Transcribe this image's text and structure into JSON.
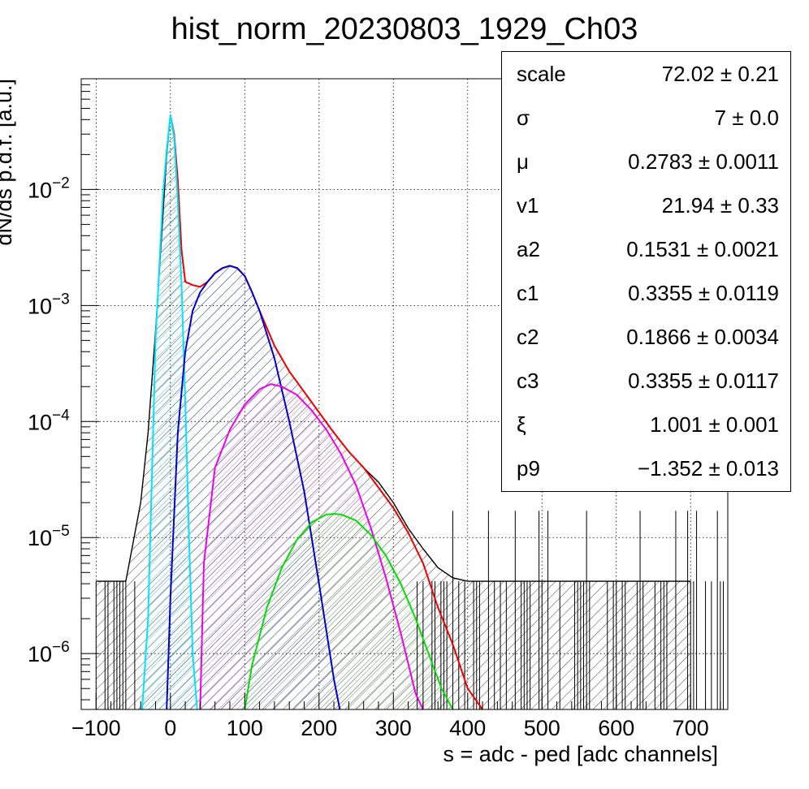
{
  "chart_data": {
    "type": "line",
    "title": "hist_norm_20230803_1929_Ch03",
    "xlabel": "s = adc - ped [adc channels]",
    "ylabel": "dN/ds p.d.f. [a.u.]",
    "xlim": [
      -120,
      750
    ],
    "ylim": [
      3.3e-07,
      0.09
    ],
    "yscale": "log",
    "grid": true,
    "x_ticks": [
      "-100",
      "0",
      "100",
      "200",
      "300",
      "400",
      "500",
      "600",
      "700"
    ],
    "y_ticks": [
      {
        "base": "10",
        "exp": "-2",
        "value": 0.01
      },
      {
        "base": "10",
        "exp": "-3",
        "value": 0.001
      },
      {
        "base": "10",
        "exp": "-4",
        "value": 0.0001
      },
      {
        "base": "10",
        "exp": "-5",
        "value": 1e-05
      },
      {
        "base": "10",
        "exp": "-6",
        "value": 1e-06
      }
    ],
    "series": [
      {
        "color": "#000000",
        "kind": "histogram",
        "x": [
          -100,
          -80,
          -60,
          -40,
          -30,
          -20,
          -10,
          -5,
          0,
          5,
          10,
          15,
          20,
          30,
          40,
          50,
          60,
          70,
          80,
          90,
          100,
          110,
          120,
          140,
          160,
          180,
          200,
          220,
          240,
          260,
          280,
          300,
          320,
          340,
          360,
          380,
          400,
          450,
          500,
          600,
          700
        ],
        "y": [
          4.2e-06,
          4.2e-06,
          4.2e-06,
          2e-05,
          8e-05,
          0.0006,
          0.006,
          0.02,
          0.044,
          0.03,
          0.012,
          0.003,
          0.0016,
          0.0015,
          0.00145,
          0.0016,
          0.0019,
          0.0021,
          0.0022,
          0.0021,
          0.0018,
          0.0013,
          0.0009,
          0.00045,
          0.00027,
          0.00018,
          0.00012,
          8e-05,
          5.5e-05,
          4e-05,
          3e-05,
          2e-05,
          1.2e-05,
          8e-06,
          5.5e-06,
          4.5e-06,
          4.2e-06,
          4.2e-06,
          4.2e-06,
          4.2e-06,
          4.2e-06
        ]
      },
      {
        "color": "#ee0000",
        "kind": "total-fit",
        "x": [
          0,
          5,
          10,
          15,
          20,
          30,
          40,
          50,
          60,
          70,
          80,
          90,
          100,
          110,
          120,
          140,
          160,
          180,
          200,
          220,
          240,
          260,
          280,
          300,
          320,
          340,
          360,
          380,
          400,
          420
        ],
        "y": [
          0.044,
          0.03,
          0.012,
          0.003,
          0.0016,
          0.0015,
          0.00145,
          0.0016,
          0.0019,
          0.0021,
          0.0022,
          0.0021,
          0.0018,
          0.0013,
          0.0009,
          0.00045,
          0.00027,
          0.00018,
          0.00012,
          8e-05,
          5.5e-05,
          4e-05,
          2.7e-05,
          1.8e-05,
          1.1e-05,
          6e-06,
          2.5e-06,
          1.2e-06,
          5e-07,
          3e-07
        ]
      },
      {
        "color": "#00e5ff",
        "kind": "component",
        "x": [
          -38,
          -30,
          -20,
          -10,
          -5,
          0,
          5,
          10,
          15,
          20,
          25,
          30,
          36
        ],
        "y": [
          3e-07,
          2e-06,
          0.0005,
          0.009,
          0.022,
          0.044,
          0.028,
          0.008,
          0.0015,
          0.00015,
          1e-05,
          1e-06,
          3e-07
        ]
      },
      {
        "color": "#0000cc",
        "kind": "component",
        "x": [
          -5,
          0,
          10,
          20,
          30,
          40,
          50,
          60,
          70,
          80,
          90,
          100,
          110,
          120,
          140,
          160,
          180,
          200,
          220,
          228
        ],
        "y": [
          3e-07,
          3e-06,
          8e-05,
          0.0004,
          0.0009,
          0.0013,
          0.0016,
          0.0019,
          0.0021,
          0.0022,
          0.0021,
          0.0018,
          0.0013,
          0.0009,
          0.00035,
          0.0001,
          2.5e-05,
          4e-06,
          6e-07,
          3e-07
        ]
      },
      {
        "color": "#ee00ee",
        "kind": "component",
        "x": [
          40,
          45,
          60,
          80,
          100,
          120,
          135,
          150,
          170,
          190,
          210,
          230,
          250,
          270,
          290,
          310,
          330,
          340
        ],
        "y": [
          3e-07,
          6e-06,
          4e-05,
          8.5e-05,
          0.00014,
          0.00019,
          0.00021,
          0.0002,
          0.00017,
          0.000125,
          8.5e-05,
          5.2e-05,
          2.8e-05,
          1.2e-05,
          4.5e-06,
          1.5e-06,
          4.5e-07,
          3e-07
        ]
      },
      {
        "color": "#00e000",
        "kind": "component",
        "x": [
          100,
          110,
          130,
          150,
          170,
          190,
          210,
          220,
          230,
          250,
          270,
          290,
          310,
          330,
          350,
          365,
          380
        ],
        "y": [
          3e-07,
          8e-07,
          2.5e-06,
          5.5e-06,
          9.5e-06,
          1.35e-05,
          1.58e-05,
          1.6e-05,
          1.58e-05,
          1.4e-05,
          1.05e-05,
          7e-06,
          4e-06,
          2e-06,
          9e-07,
          5e-07,
          3e-07
        ]
      }
    ]
  },
  "stats_box": {
    "rows": [
      {
        "name": "scale",
        "value": "72.02 ± 0.21"
      },
      {
        "name": "σ",
        "value": "7 ± 0.0"
      },
      {
        "name": "μ",
        "value": "0.2783 ± 0.0011"
      },
      {
        "name": "v1",
        "value": "21.94 ± 0.33"
      },
      {
        "name": "a2",
        "value": "0.1531 ± 0.0021"
      },
      {
        "name": "c1",
        "value": "0.3355 ± 0.0119"
      },
      {
        "name": "c2",
        "value": "0.1866 ± 0.0034"
      },
      {
        "name": "c3",
        "value": "0.3355 ± 0.0117"
      },
      {
        "name": "ξ",
        "value": "1.001 ± 0.001"
      },
      {
        "name": "p9",
        "value": "−1.352 ± 0.013"
      }
    ]
  }
}
